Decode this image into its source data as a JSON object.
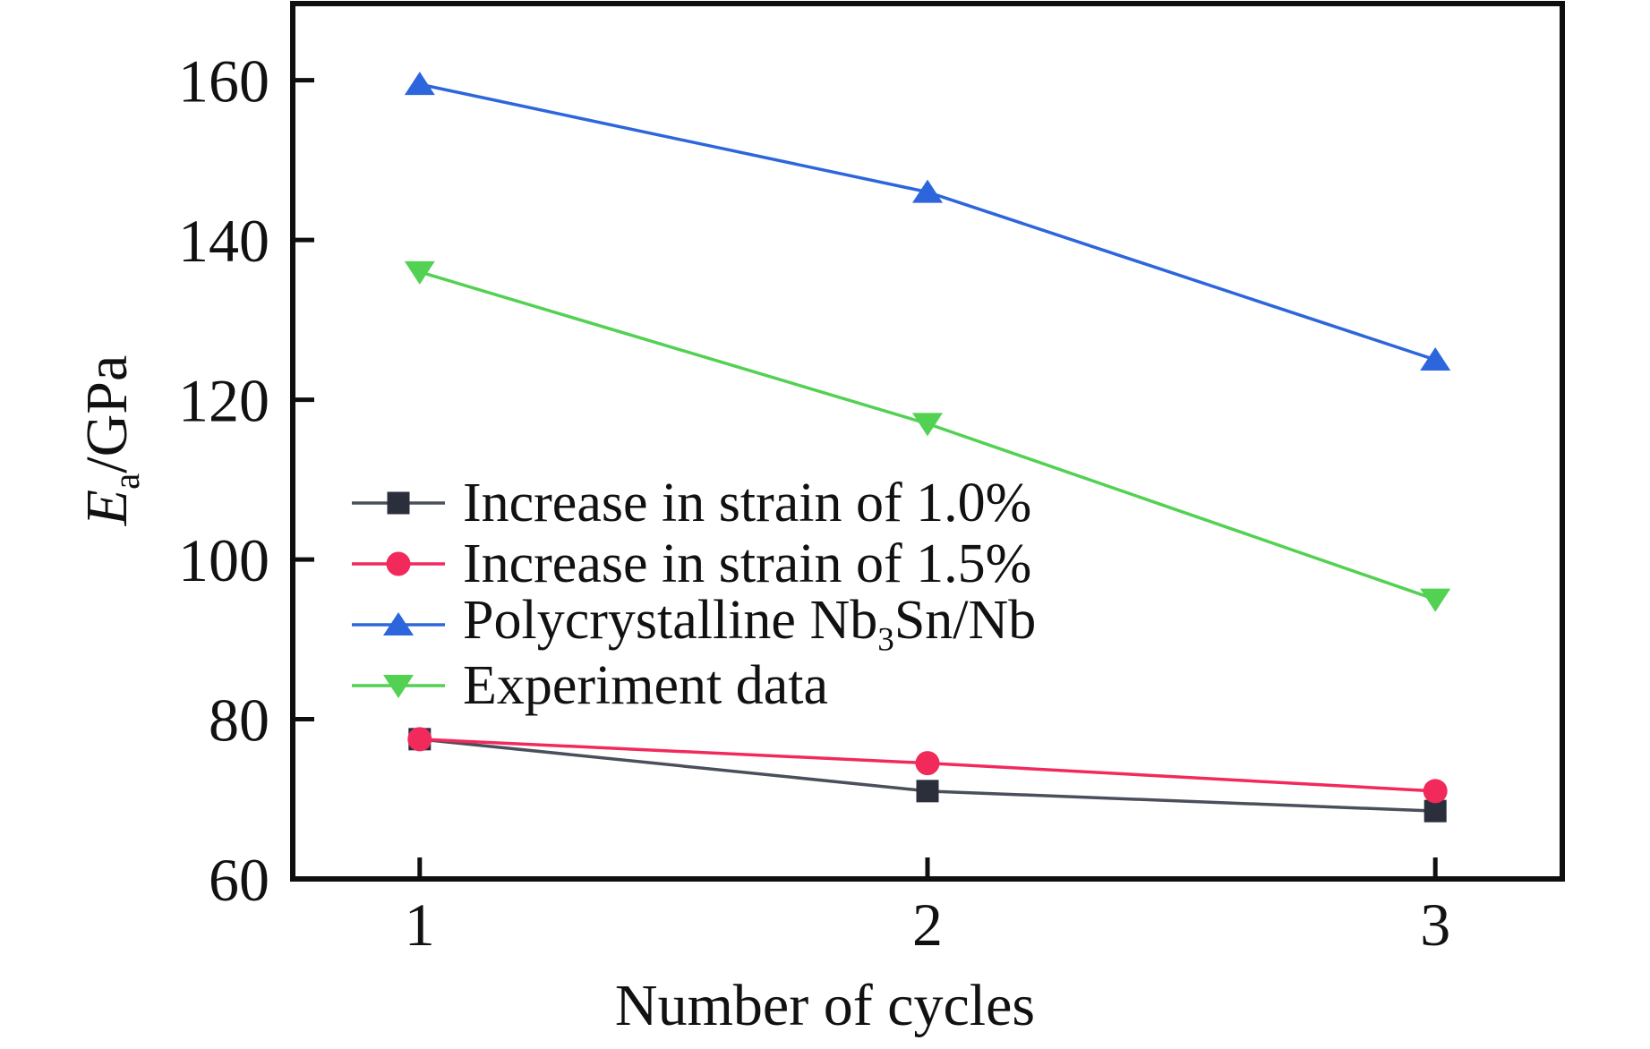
{
  "figure": {
    "background": "#ffffff",
    "xlabel": "Number of cycles",
    "ylabel": {
      "symbol": "E",
      "subscript": "a",
      "unit": "/GPa"
    }
  },
  "chart_data": {
    "type": "line",
    "title": "",
    "xlabel": "Number of cycles",
    "ylabel": "E_a /GPa",
    "x": [
      1,
      2,
      3
    ],
    "x_ticks": [
      "1",
      "2",
      "3"
    ],
    "y_ticks": [
      60,
      80,
      100,
      120,
      140,
      160
    ],
    "xlim": [
      0.75,
      3.25
    ],
    "ylim": [
      60,
      169.6
    ],
    "grid": false,
    "legend_position": "inside-left-middle",
    "axis_color": "#0f0f0f",
    "series": [
      {
        "name": "Increase in strain of 1.0%",
        "label": {
          "pre": "Increase in strain of 1.0%",
          "sub": "",
          "post": ""
        },
        "marker": "square",
        "line_color": "#4a4f5b",
        "marker_color": "#2b2f3c",
        "values": [
          77.5,
          71,
          68.5
        ]
      },
      {
        "name": "Increase in strain of 1.5%",
        "label": {
          "pre": "Increase in strain of 1.5%",
          "sub": "",
          "post": ""
        },
        "marker": "circle",
        "line_color": "#f2295b",
        "marker_color": "#f2295b",
        "values": [
          77.5,
          74.5,
          71
        ]
      },
      {
        "name": "Polycrystalline Nb3Sn/Nb",
        "label": {
          "pre": "Polycrystalline Nb",
          "sub": "3",
          "post": "Sn/Nb"
        },
        "marker": "triangle-up",
        "line_color": "#2d66dc",
        "marker_color": "#2d66dc",
        "values": [
          159.5,
          146,
          125
        ]
      },
      {
        "name": "Experiment data",
        "label": {
          "pre": "Experiment data",
          "sub": "",
          "post": ""
        },
        "marker": "triangle-down",
        "line_color": "#52d152",
        "marker_color": "#52d152",
        "values": [
          136,
          117,
          95
        ]
      }
    ]
  }
}
